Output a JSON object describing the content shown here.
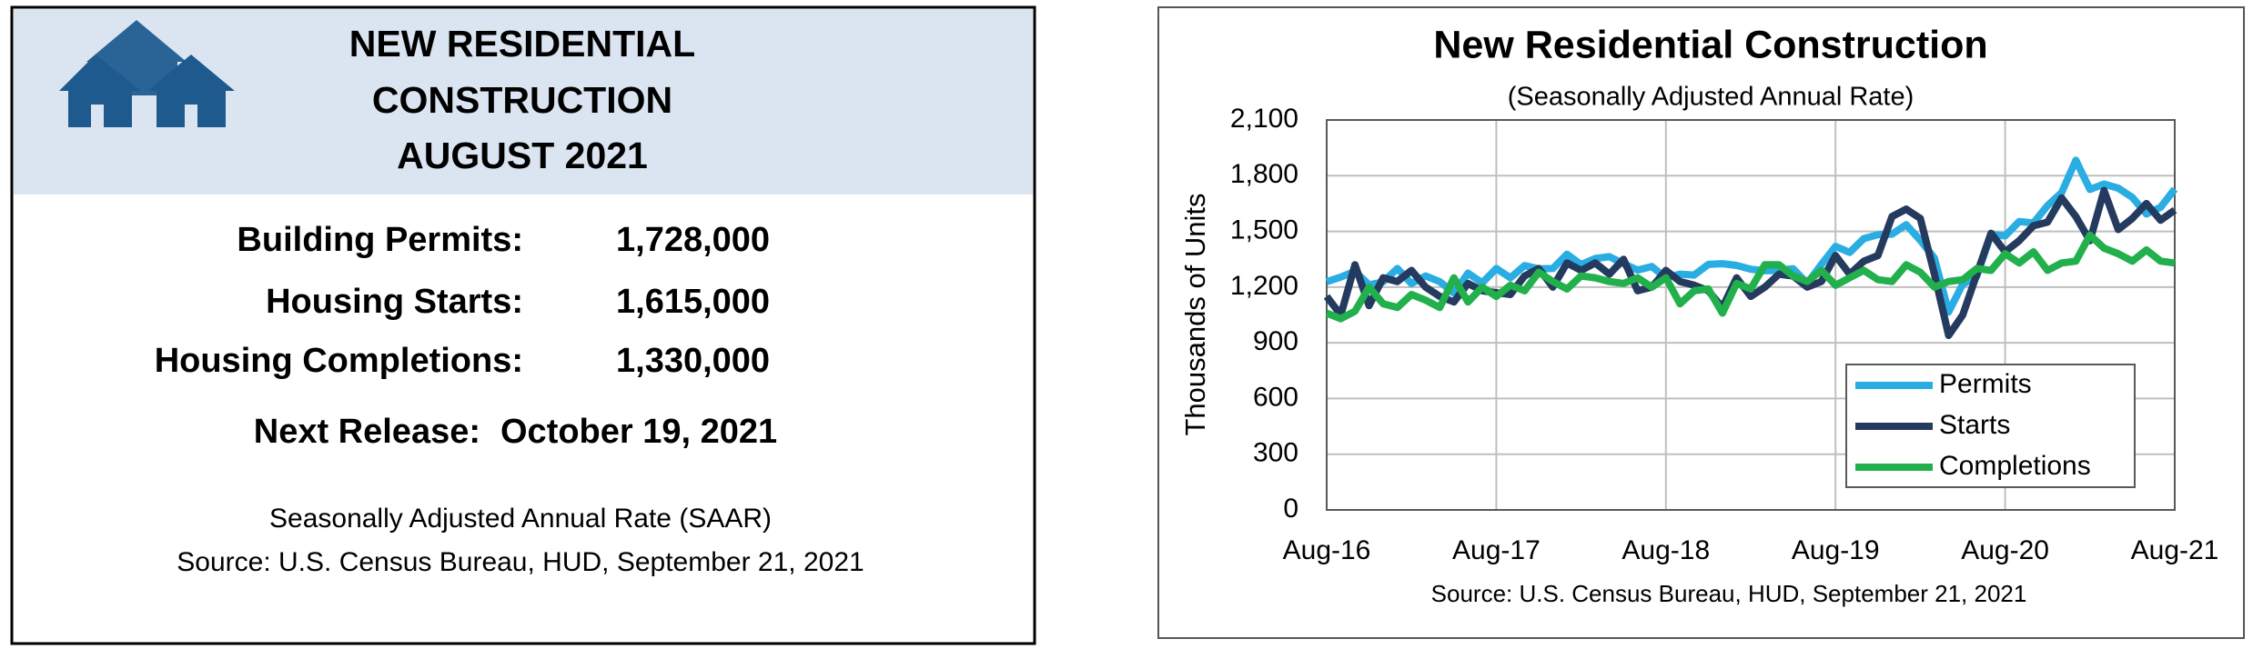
{
  "panel": {
    "title_lines": [
      "NEW RESIDENTIAL",
      "CONSTRUCTION",
      "AUGUST 2021"
    ],
    "rows": [
      {
        "label": "Building Permits:",
        "value": "1,728,000"
      },
      {
        "label": "Housing Starts:",
        "value": "1,615,000"
      },
      {
        "label": "Housing Completions:",
        "value": "1,330,000"
      }
    ],
    "next_release": {
      "label": "Next Release:",
      "date": "October 19, 2021"
    },
    "footnotes": [
      "Seasonally Adjusted Annual Rate (SAAR)",
      "Source:  U.S. Census Bureau, HUD, September 21, 2021"
    ]
  },
  "chart_data": {
    "type": "line",
    "title": "New Residential Construction",
    "subtitle": "(Seasonally Adjusted Annual Rate)",
    "y_label": "Thousands of Units",
    "source": "Source:  U.S. Census Bureau, HUD, September 21, 2021",
    "categories": [
      "Aug-16",
      null,
      null,
      null,
      null,
      null,
      null,
      null,
      null,
      null,
      null,
      null,
      "Aug-17",
      null,
      null,
      null,
      null,
      null,
      null,
      null,
      null,
      null,
      null,
      null,
      "Aug-18",
      null,
      null,
      null,
      null,
      null,
      null,
      null,
      null,
      null,
      null,
      null,
      "Aug-19",
      null,
      null,
      null,
      null,
      null,
      null,
      null,
      null,
      null,
      null,
      null,
      "Aug-20",
      null,
      null,
      null,
      null,
      null,
      null,
      null,
      null,
      null,
      null,
      null,
      "Aug-21"
    ],
    "ylim": [
      0,
      2100
    ],
    "yticks": [
      0,
      300,
      600,
      900,
      {
        "value": 1200,
        "label": "1,200"
      },
      {
        "value": 1500,
        "label": "1,500"
      },
      {
        "value": 1800,
        "label": "1,800"
      },
      {
        "value": 2100,
        "label": "2,100"
      }
    ],
    "grid": true,
    "legend": "lower right",
    "series": [
      {
        "name": "Permits",
        "color": "#2aade3",
        "values": [
          1229,
          1254,
          1285,
          1212,
          1228,
          1300,
          1219,
          1260,
          1229,
          1168,
          1275,
          1223,
          1300,
          1250,
          1316,
          1298,
          1300,
          1377,
          1321,
          1354,
          1364,
          1326,
          1292,
          1311,
          1249,
          1270,
          1265,
          1322,
          1326,
          1317,
          1296,
          1288,
          1290,
          1299,
          1220,
          1322,
          1419,
          1387,
          1461,
          1482,
          1485,
          1536,
          1452,
          1356,
          1066,
          1216,
          1258,
          1483,
          1476,
          1553,
          1545,
          1639,
          1709,
          1883,
          1726,
          1755,
          1733,
          1683,
          1594,
          1630,
          1728
        ]
      },
      {
        "name": "Starts",
        "color": "#243a5e",
        "values": [
          1150,
          1050,
          1320,
          1100,
          1250,
          1230,
          1290,
          1200,
          1150,
          1120,
          1220,
          1180,
          1170,
          1160,
          1260,
          1300,
          1200,
          1330,
          1290,
          1330,
          1270,
          1350,
          1180,
          1200,
          1290,
          1230,
          1210,
          1180,
          1090,
          1250,
          1150,
          1200,
          1270,
          1260,
          1200,
          1230,
          1370,
          1270,
          1340,
          1370,
          1580,
          1620,
          1570,
          1270,
          940,
          1050,
          1270,
          1490,
          1390,
          1450,
          1530,
          1550,
          1680,
          1580,
          1450,
          1720,
          1510,
          1570,
          1650,
          1560,
          1615
        ]
      },
      {
        "name": "Completions",
        "color": "#21b04b",
        "values": [
          1060,
          1030,
          1070,
          1200,
          1110,
          1090,
          1160,
          1130,
          1090,
          1250,
          1120,
          1200,
          1150,
          1210,
          1180,
          1280,
          1230,
          1190,
          1260,
          1250,
          1230,
          1220,
          1250,
          1200,
          1250,
          1110,
          1180,
          1190,
          1060,
          1220,
          1190,
          1320,
          1320,
          1260,
          1230,
          1290,
          1210,
          1250,
          1290,
          1240,
          1230,
          1320,
          1280,
          1200,
          1230,
          1240,
          1300,
          1290,
          1380,
          1330,
          1390,
          1290,
          1330,
          1340,
          1480,
          1410,
          1380,
          1340,
          1400,
          1340,
          1330
        ]
      }
    ]
  }
}
